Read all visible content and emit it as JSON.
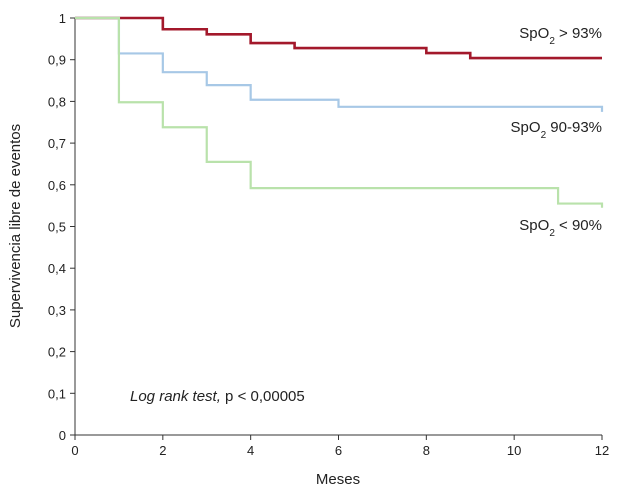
{
  "chart_data": {
    "type": "line",
    "step": true,
    "xlabel": "Meses",
    "ylabel": "Supervivencia libre de eventos",
    "xlim": [
      0,
      12
    ],
    "ylim": [
      0,
      1
    ],
    "xticks": [
      0,
      2,
      4,
      6,
      8,
      10,
      12
    ],
    "yticks": [
      0,
      0.1,
      0.2,
      0.3,
      0.4,
      0.5,
      0.6,
      0.7,
      0.8,
      0.9,
      1
    ],
    "ytick_labels": [
      "0",
      "0,1",
      "0,2",
      "0,3",
      "0,4",
      "0,5",
      "0,6",
      "0,7",
      "0,8",
      "0,9",
      "1"
    ],
    "grid": false,
    "annotation": {
      "italic": "Log rank test,",
      "rest": " p < 0,00005"
    },
    "series": [
      {
        "label_main": "SpO",
        "label_sub": "2",
        "label_rest": " > 93%",
        "color": "#a3182b",
        "x": [
          0,
          2,
          3,
          4,
          5,
          8,
          9,
          12
        ],
        "y": [
          1.0,
          0.973,
          0.961,
          0.94,
          0.928,
          0.916,
          0.904,
          0.904
        ]
      },
      {
        "label_main": "SpO",
        "label_sub": "2",
        "label_rest": " 90-93%",
        "color": "#a7c8e6",
        "x": [
          0,
          1,
          2,
          3,
          4,
          6,
          12
        ],
        "y": [
          1.0,
          0.915,
          0.87,
          0.839,
          0.804,
          0.787,
          0.775
        ]
      },
      {
        "label_main": "SpO",
        "label_sub": "2",
        "label_rest": " < 90%",
        "color": "#b9e2ab",
        "x": [
          0,
          1,
          2,
          3,
          4,
          11,
          12
        ],
        "y": [
          1.0,
          0.798,
          0.738,
          0.655,
          0.592,
          0.555,
          0.545
        ]
      }
    ]
  }
}
